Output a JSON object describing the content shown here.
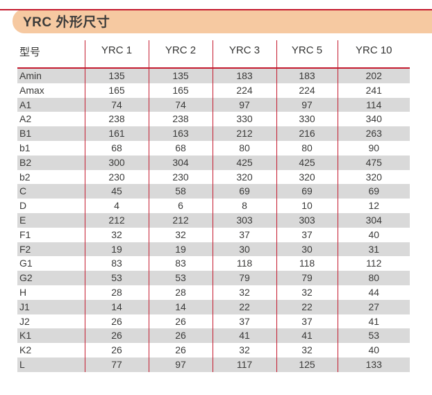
{
  "page": {
    "title": "YRC 外形尺寸"
  },
  "colors": {
    "accent_red": "#c41a2e",
    "title_bg": "#f6c9a1",
    "row_alt_gray": "#d9d9d9",
    "text": "#3a3a39"
  },
  "table": {
    "columns": [
      "型号",
      "YRC 1",
      "YRC 2",
      "YRC 3",
      "YRC 5",
      "YRC 10"
    ],
    "rows": [
      {
        "label": "Amin",
        "values": [
          "135",
          "135",
          "183",
          "183",
          "202"
        ]
      },
      {
        "label": "Amax",
        "values": [
          "165",
          "165",
          "224",
          "224",
          "241"
        ]
      },
      {
        "label": "A1",
        "values": [
          "74",
          "74",
          "97",
          "97",
          "114"
        ]
      },
      {
        "label": "A2",
        "values": [
          "238",
          "238",
          "330",
          "330",
          "340"
        ]
      },
      {
        "label": "B1",
        "values": [
          "161",
          "163",
          "212",
          "216",
          "263"
        ]
      },
      {
        "label": "b1",
        "values": [
          "68",
          "68",
          "80",
          "80",
          "90"
        ]
      },
      {
        "label": "B2",
        "values": [
          "300",
          "304",
          "425",
          "425",
          "475"
        ]
      },
      {
        "label": "b2",
        "values": [
          "230",
          "230",
          "320",
          "320",
          "320"
        ]
      },
      {
        "label": "C",
        "values": [
          "45",
          "58",
          "69",
          "69",
          "69"
        ]
      },
      {
        "label": "D",
        "values": [
          "4",
          "6",
          "8",
          "10",
          "12"
        ]
      },
      {
        "label": "E",
        "values": [
          "212",
          "212",
          "303",
          "303",
          "304"
        ]
      },
      {
        "label": "F1",
        "values": [
          "32",
          "32",
          "37",
          "37",
          "40"
        ]
      },
      {
        "label": "F2",
        "values": [
          "19",
          "19",
          "30",
          "30",
          "31"
        ]
      },
      {
        "label": "G1",
        "values": [
          "83",
          "83",
          "118",
          "118",
          "112"
        ]
      },
      {
        "label": "G2",
        "values": [
          "53",
          "53",
          "79",
          "79",
          "80"
        ]
      },
      {
        "label": "H",
        "values": [
          "28",
          "28",
          "32",
          "32",
          "44"
        ]
      },
      {
        "label": "J1",
        "values": [
          "14",
          "14",
          "22",
          "22",
          "27"
        ]
      },
      {
        "label": "J2",
        "values": [
          "26",
          "26",
          "37",
          "37",
          "41"
        ]
      },
      {
        "label": "K1",
        "values": [
          "26",
          "26",
          "41",
          "41",
          "53"
        ]
      },
      {
        "label": "K2",
        "values": [
          "26",
          "26",
          "32",
          "32",
          "40"
        ]
      },
      {
        "label": "L",
        "values": [
          "77",
          "97",
          "117",
          "125",
          "133"
        ]
      }
    ]
  }
}
